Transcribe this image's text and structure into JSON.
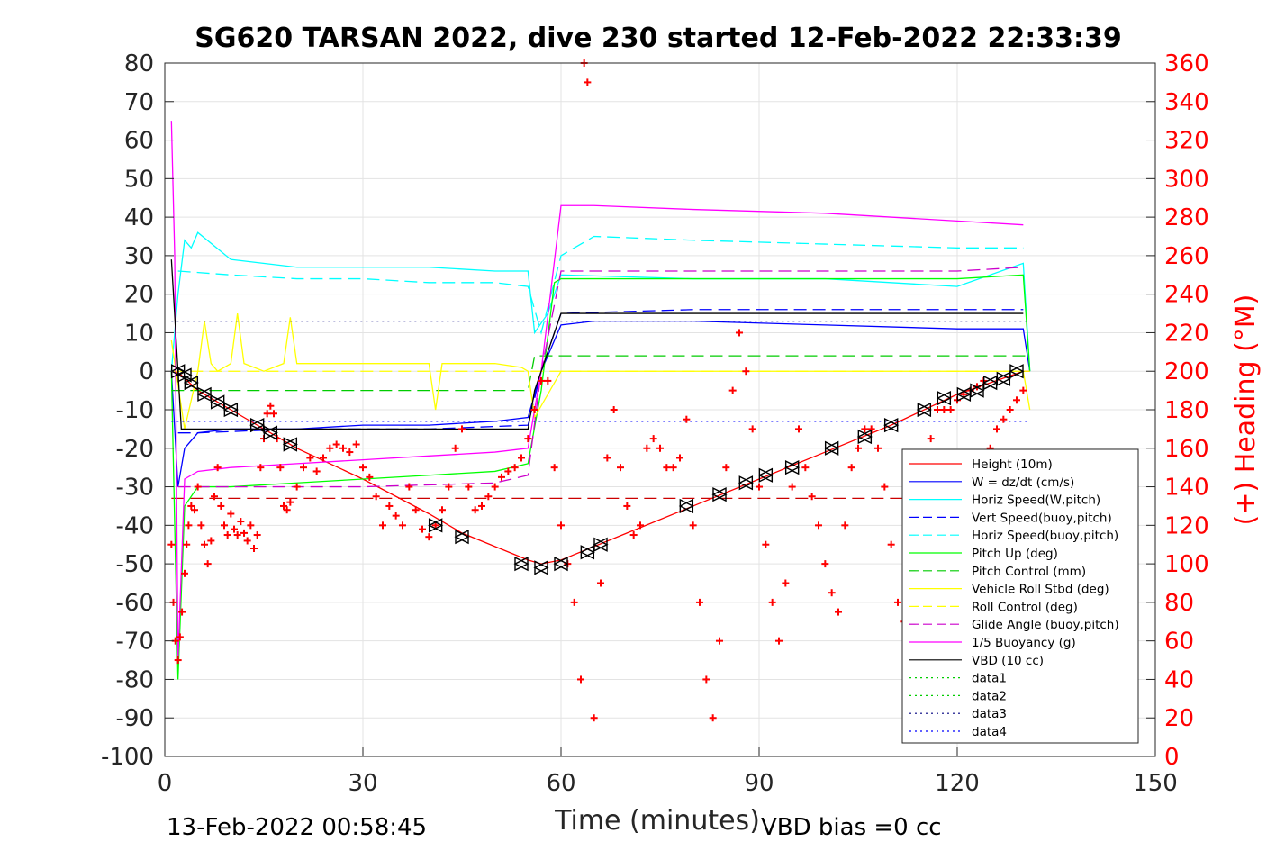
{
  "chart_data": {
    "type": "line",
    "title": "SG620 TARSAN 2022, dive 230 started 12-Feb-2022 22:33:39",
    "xlabel": "Time (minutes)",
    "ylabel_right": "(+) Heading (°M)",
    "xlim": [
      0,
      150
    ],
    "ylim_left": [
      -100,
      80
    ],
    "ylim_right": [
      0,
      360
    ],
    "x_ticks": [
      0,
      30,
      60,
      90,
      120,
      150
    ],
    "y_left_ticks": [
      80,
      70,
      60,
      50,
      40,
      30,
      20,
      10,
      0,
      -10,
      -20,
      -30,
      -40,
      -50,
      -60,
      -70,
      -80,
      -90,
      -100
    ],
    "y_right_ticks": [
      360,
      340,
      320,
      300,
      280,
      260,
      240,
      220,
      200,
      180,
      160,
      140,
      120,
      100,
      80,
      60,
      40,
      20,
      0
    ],
    "grid": true,
    "legend_position": "bottom-right",
    "footer_left": "13-Feb-2022 00:58:45",
    "footer_right": "VBD bias =0 cc",
    "series": [
      {
        "name": "Height (10m)",
        "color": "#ff0000",
        "style": "solid",
        "x": [
          1.5,
          2.5,
          5,
          10,
          20,
          30,
          40,
          45,
          55,
          57,
          60,
          70,
          80,
          90,
          100,
          110,
          120,
          130,
          131
        ],
        "y": [
          0,
          -1,
          -5,
          -10,
          -20,
          -28,
          -37,
          -42,
          -49,
          -50,
          -49,
          -42,
          -35,
          -28,
          -21,
          -14,
          -6,
          0,
          0
        ]
      },
      {
        "name": "W = dz/dt (cm/s)",
        "color": "#0000ff",
        "style": "solid",
        "x": [
          1,
          2,
          3,
          5,
          10,
          20,
          30,
          40,
          50,
          55,
          57,
          60,
          65,
          80,
          100,
          120,
          130,
          131
        ],
        "y": [
          0,
          -30,
          -20,
          -16,
          -15,
          -15,
          -14,
          -14,
          -13,
          -12,
          0,
          12,
          13,
          13,
          12,
          11,
          11,
          0
        ]
      },
      {
        "name": "Horiz Speed(W,pitch)",
        "color": "#00ffff",
        "style": "solid",
        "x": [
          1,
          2,
          3,
          4,
          5,
          10,
          20,
          30,
          40,
          50,
          55,
          56,
          58,
          60,
          80,
          100,
          120,
          130,
          131
        ],
        "y": [
          0,
          20,
          34,
          32,
          36,
          29,
          27,
          27,
          27,
          26,
          26,
          10,
          15,
          25,
          24,
          24,
          22,
          28,
          0
        ]
      },
      {
        "name": "Vert Speed(buoy,pitch)",
        "color": "#0000ff",
        "style": "dashed",
        "x": [
          2,
          5,
          20,
          40,
          55,
          57,
          60,
          80,
          100,
          120,
          130
        ],
        "y": [
          -16,
          -16,
          -15,
          -15,
          -14,
          0,
          15,
          16,
          16,
          16,
          16
        ]
      },
      {
        "name": "Horiz Speed(buoy,pitch)",
        "color": "#00ffff",
        "style": "dashed",
        "x": [
          2,
          10,
          20,
          30,
          40,
          50,
          55,
          57,
          60,
          65,
          80,
          100,
          120,
          130
        ],
        "y": [
          26,
          25,
          24,
          24,
          23,
          23,
          22,
          10,
          30,
          35,
          34,
          33,
          32,
          32
        ]
      },
      {
        "name": "Pitch Up (deg)",
        "color": "#00ff00",
        "style": "solid",
        "x": [
          1,
          2,
          3,
          5,
          10,
          20,
          30,
          40,
          50,
          55,
          57,
          59,
          60,
          80,
          100,
          120,
          130,
          131
        ],
        "y": [
          0,
          -80,
          -35,
          -30,
          -30,
          -29,
          -28,
          -27,
          -26,
          -24,
          -5,
          23,
          24,
          24,
          24,
          24,
          25,
          0
        ]
      },
      {
        "name": "Pitch Control (mm)",
        "color": "#00cc00",
        "style": "dashed",
        "x": [
          1,
          5,
          55,
          56,
          60,
          131
        ],
        "y": [
          -5,
          -5,
          -5,
          4,
          4,
          4
        ]
      },
      {
        "name": "Vehicle Roll Stbd (deg)",
        "color": "#ffff00",
        "style": "solid",
        "x": [
          1,
          3,
          5,
          6,
          7,
          8,
          10,
          11,
          12,
          15,
          18,
          19,
          20,
          30,
          40,
          41,
          42,
          50,
          54,
          55,
          56,
          60,
          65,
          70,
          80,
          90,
          100,
          110,
          120,
          130,
          131
        ],
        "y": [
          8,
          -15,
          0,
          13,
          2,
          0,
          2,
          15,
          2,
          0,
          2,
          14,
          2,
          2,
          2,
          -10,
          2,
          2,
          1,
          0,
          -12,
          0,
          0,
          0,
          0,
          0,
          0,
          0,
          0,
          0,
          -10
        ]
      },
      {
        "name": "Roll Control (deg)",
        "color": "#ffff00",
        "style": "dashed",
        "x": [
          1,
          131
        ],
        "y": [
          0,
          0
        ]
      },
      {
        "name": "Glide Angle (buoy,pitch)",
        "color": "#cc00cc",
        "style": "dashed",
        "x": [
          2,
          10,
          30,
          50,
          55,
          57,
          60,
          80,
          100,
          120,
          130
        ],
        "y": [
          -30,
          -30,
          -30,
          -29,
          -27,
          0,
          26,
          26,
          26,
          26,
          27
        ]
      },
      {
        "name": "1/5 Buoyancy (g)",
        "color": "#ff00ff",
        "style": "solid",
        "x": [
          1,
          1.5,
          2,
          3,
          5,
          10,
          20,
          30,
          40,
          50,
          55,
          57,
          60,
          65,
          80,
          100,
          120,
          130
        ],
        "y": [
          65,
          30,
          -75,
          -28,
          -26,
          -25,
          -24,
          -23,
          -22,
          -21,
          -20,
          0,
          43,
          43,
          42,
          41,
          39,
          38
        ]
      },
      {
        "name": "VBD (10 cc)",
        "color": "#000000",
        "style": "solid",
        "x": [
          1,
          2,
          2.5,
          5,
          20,
          40,
          55,
          56,
          58,
          60,
          80,
          100,
          120,
          130
        ],
        "y": [
          29,
          0,
          -15,
          -15,
          -15,
          -15,
          -15,
          -5,
          5,
          15,
          15,
          15,
          15,
          15
        ]
      },
      {
        "name": "data1",
        "color": "#00cc00",
        "style": "dotted",
        "x": [],
        "y": []
      },
      {
        "name": "data2",
        "color": "#00cc00",
        "style": "dotted",
        "x": [],
        "y": []
      },
      {
        "name": "data3",
        "color": "#000080",
        "style": "dotted",
        "x": [
          1,
          131
        ],
        "y": [
          13,
          13
        ]
      },
      {
        "name": "data4",
        "color": "#0000ff",
        "style": "dotted",
        "x": [
          1,
          131
        ],
        "y": [
          -13,
          -13
        ]
      }
    ],
    "extra_lines": [
      {
        "color": "#cc0000",
        "style": "dashed",
        "x": [
          1,
          131
        ],
        "y": [
          -33,
          -33
        ]
      }
    ],
    "heading_points": {
      "color": "#ff0000",
      "marker": "+",
      "axis": "right",
      "x": [
        1,
        1.3,
        1.6,
        2,
        2.3,
        2.6,
        3,
        3.3,
        3.6,
        4,
        4.5,
        5,
        5.5,
        6,
        6.5,
        7,
        7.5,
        8,
        8.5,
        9,
        9.5,
        10,
        10.5,
        11,
        11.5,
        12,
        12.5,
        13,
        13.5,
        14,
        14.5,
        15,
        15.5,
        16,
        16.5,
        17,
        17.5,
        18,
        18.5,
        19,
        20,
        21,
        22,
        23,
        24,
        25,
        26,
        27,
        28,
        29,
        30,
        31,
        32,
        33,
        34,
        35,
        36,
        37,
        38,
        39,
        40,
        41,
        42,
        43,
        44,
        45,
        46,
        47,
        48,
        49,
        50,
        51,
        52,
        53,
        54,
        55,
        56,
        57,
        58,
        59,
        60,
        61,
        62,
        63,
        63.5,
        64,
        65,
        66,
        67,
        68,
        69,
        70,
        71,
        72,
        73,
        74,
        75,
        76,
        77,
        78,
        79,
        80,
        81,
        82,
        83,
        84,
        85,
        86,
        87,
        88,
        89,
        90,
        91,
        92,
        93,
        94,
        95,
        96,
        97,
        98,
        99,
        100,
        101,
        102,
        103,
        104,
        105,
        106,
        107,
        108,
        109,
        110,
        111,
        112,
        113,
        114,
        115,
        116,
        117,
        118,
        119,
        120,
        121,
        122,
        123,
        124,
        125,
        126,
        127,
        128,
        129,
        130
      ],
      "y": [
        110,
        80,
        60,
        50,
        62,
        75,
        95,
        110,
        120,
        130,
        128,
        140,
        120,
        110,
        100,
        112,
        135,
        150,
        130,
        120,
        115,
        126,
        118,
        115,
        122,
        116,
        112,
        120,
        108,
        115,
        150,
        165,
        178,
        182,
        178,
        165,
        150,
        130,
        128,
        132,
        140,
        150,
        155,
        148,
        155,
        160,
        162,
        160,
        158,
        162,
        150,
        145,
        135,
        120,
        130,
        125,
        120,
        140,
        128,
        118,
        114,
        120,
        128,
        140,
        160,
        170,
        140,
        128,
        130,
        135,
        140,
        145,
        148,
        150,
        155,
        165,
        180,
        195,
        195,
        150,
        120,
        100,
        80,
        40,
        360,
        350,
        20,
        90,
        155,
        180,
        150,
        130,
        115,
        120,
        160,
        165,
        160,
        150,
        150,
        155,
        175,
        120,
        80,
        40,
        20,
        60,
        150,
        190,
        220,
        200,
        170,
        140,
        110,
        80,
        60,
        90,
        140,
        170,
        150,
        135,
        120,
        100,
        85,
        75,
        120,
        150,
        160,
        170,
        170,
        160,
        140,
        110,
        80,
        70,
        40,
        100,
        150,
        165,
        180,
        180,
        180,
        185,
        188,
        190,
        192,
        195,
        160,
        170,
        175,
        180,
        185,
        190
      ]
    },
    "triangle_markers": {
      "color": "#000000",
      "x": [
        2,
        3,
        4,
        6,
        8,
        10,
        14,
        16,
        19,
        41,
        45,
        54,
        57,
        60,
        64,
        66,
        79,
        84,
        88,
        91,
        95,
        101,
        106,
        110,
        115,
        118,
        121,
        123,
        125,
        127,
        129
      ],
      "y": [
        0,
        -1,
        -3,
        -6,
        -8,
        -10,
        -14,
        -16,
        -19,
        -40,
        -43,
        -50,
        -51,
        -50,
        -47,
        -45,
        -35,
        -32,
        -29,
        -27,
        -25,
        -20,
        -17,
        -14,
        -10,
        -7,
        -6,
        -5,
        -3,
        -2,
        0
      ]
    }
  }
}
